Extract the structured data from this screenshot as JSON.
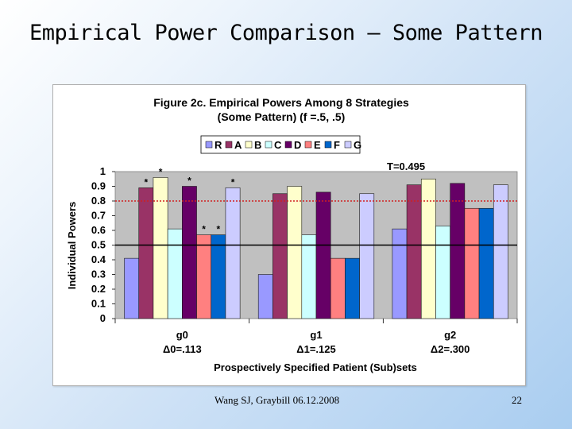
{
  "slide": {
    "title": "Empirical Power Comparison – Some Pattern",
    "footer_author": "Wang SJ, Graybill 06.12.2008",
    "page_number": "22"
  },
  "chart_data": {
    "type": "bar",
    "title": "Figure 2c. Empirical Powers Among 8 Strategies",
    "subtitle": "(Some Pattern) (f =.5, .5)",
    "xlabel": "Prospectively Specified Patient (Sub)sets",
    "ylabel": "Individual Powers",
    "ylim": [
      0,
      1
    ],
    "yticks": [
      "0",
      "0.1",
      "0.2",
      "0.3",
      "0.4",
      "0.5",
      "0.6",
      "0.7",
      "0.8",
      "0.9",
      "1"
    ],
    "grid": false,
    "legend_position": "top",
    "categories": [
      "g0",
      "g1",
      "g2"
    ],
    "category_deltas": [
      "Δ0=.113",
      "Δ1=.125",
      "Δ2=.300"
    ],
    "threshold_label": "T=0.495",
    "reference_lines": [
      {
        "value": 0.5,
        "style": "solid",
        "color": "#000000"
      },
      {
        "value": 0.8,
        "style": "dotted",
        "color": "#d02020"
      }
    ],
    "series": [
      {
        "name": "R",
        "color": "#9999ff",
        "values": [
          0.41,
          0.3,
          0.61
        ]
      },
      {
        "name": "A",
        "color": "#993366",
        "values": [
          0.89,
          0.85,
          0.91
        ]
      },
      {
        "name": "B",
        "color": "#ffffcc",
        "values": [
          0.96,
          0.9,
          0.95
        ]
      },
      {
        "name": "C",
        "color": "#ccffff",
        "values": [
          0.61,
          0.57,
          0.63
        ]
      },
      {
        "name": "D",
        "color": "#660066",
        "values": [
          0.9,
          0.86,
          0.92
        ]
      },
      {
        "name": "E",
        "color": "#ff8080",
        "values": [
          0.57,
          0.41,
          0.75
        ]
      },
      {
        "name": "F",
        "color": "#0066cc",
        "values": [
          0.57,
          0.41,
          0.75
        ]
      },
      {
        "name": "G",
        "color": "#ccccff",
        "values": [
          0.89,
          0.85,
          0.91
        ]
      }
    ],
    "annotations": [
      {
        "text": "*",
        "category": "g0",
        "series": "A"
      },
      {
        "text": "*",
        "category": "g0",
        "series": "B"
      },
      {
        "text": "*",
        "category": "g0",
        "series": "D"
      },
      {
        "text": "*",
        "category": "g0",
        "series": "E"
      },
      {
        "text": "*",
        "category": "g0",
        "series": "F"
      },
      {
        "text": "*",
        "category": "g0",
        "series": "G"
      }
    ]
  }
}
